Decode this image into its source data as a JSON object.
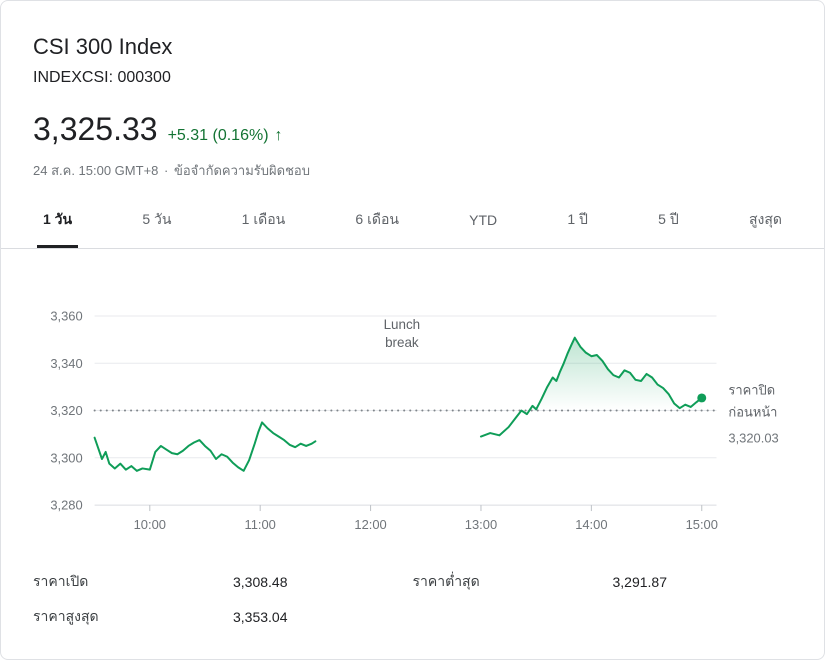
{
  "header": {
    "title": "CSI 300 Index",
    "ticker": "INDEXCSI: 000300",
    "price": "3,325.33",
    "change": "+5.31 (0.16%)",
    "trend_arrow_icon": "↑",
    "timestamp": "24 ส.ค. 15:00 GMT+8",
    "separator": "·",
    "disclaimer": "ข้อจำกัดความรับผิดชอบ"
  },
  "tabs": [
    {
      "label": "1 วัน",
      "active": true
    },
    {
      "label": "5 วัน",
      "active": false
    },
    {
      "label": "1 เดือน",
      "active": false
    },
    {
      "label": "6 เดือน",
      "active": false
    },
    {
      "label": "YTD",
      "active": false
    },
    {
      "label": "1 ปี",
      "active": false
    },
    {
      "label": "5 ปี",
      "active": false
    },
    {
      "label": "สูงสุด",
      "active": false
    }
  ],
  "chart_data": {
    "type": "line",
    "title": "CSI 300 Index intraday",
    "x_domain_minutes": [
      570,
      908
    ],
    "ylim": [
      3280,
      3360
    ],
    "grid": true,
    "y_ticks": [
      {
        "value": 3360,
        "label": "3,360"
      },
      {
        "value": 3340,
        "label": "3,340"
      },
      {
        "value": 3320,
        "label": "3,320"
      },
      {
        "value": 3300,
        "label": "3,300"
      },
      {
        "value": 3280,
        "label": "3,280"
      }
    ],
    "x_ticks": [
      {
        "minutes": 600,
        "label": "10:00"
      },
      {
        "minutes": 660,
        "label": "11:00"
      },
      {
        "minutes": 720,
        "label": "12:00"
      },
      {
        "minutes": 780,
        "label": "13:00"
      },
      {
        "minutes": 840,
        "label": "14:00"
      },
      {
        "minutes": 900,
        "label": "15:00"
      }
    ],
    "annotation": {
      "lines": [
        "Lunch",
        "break"
      ],
      "minutes": 737
    },
    "previous_close": {
      "value": 3320.03,
      "label_lines": [
        "ราคาปิด",
        "ก่อนหน้า"
      ],
      "value_label": "3,320.03"
    },
    "last_point": {
      "minutes": 900,
      "value": 3325.33
    },
    "colors": {
      "line": "#0f9d58",
      "change_text": "#137333",
      "grid": "#e8eaed",
      "axis_line": "#dadce0",
      "tick": "#bdc1c6",
      "axis_text": "#70757a",
      "annotation_text": "#5f6368",
      "prev_close": "#80868b",
      "label_text": "#5f6368"
    },
    "sessions": [
      {
        "name": "morning",
        "points": [
          [
            570,
            3308.5
          ],
          [
            572,
            3304
          ],
          [
            574,
            3299.5
          ],
          [
            576,
            3302.5
          ],
          [
            578,
            3297.5
          ],
          [
            581,
            3295.5
          ],
          [
            584,
            3297.5
          ],
          [
            587,
            3295
          ],
          [
            590,
            3296.5
          ],
          [
            593,
            3294.5
          ],
          [
            596,
            3295.5
          ],
          [
            600,
            3295
          ],
          [
            603,
            3302.5
          ],
          [
            606,
            3305
          ],
          [
            609,
            3303.5
          ],
          [
            612,
            3302
          ],
          [
            615,
            3301.5
          ],
          [
            618,
            3303
          ],
          [
            621,
            3305
          ],
          [
            624,
            3306.5
          ],
          [
            627,
            3307.5
          ],
          [
            630,
            3305
          ],
          [
            633,
            3303
          ],
          [
            636,
            3299.5
          ],
          [
            639,
            3301.5
          ],
          [
            642,
            3300.5
          ],
          [
            645,
            3298
          ],
          [
            648,
            3296
          ],
          [
            651,
            3294.5
          ],
          [
            654,
            3299
          ],
          [
            657,
            3306
          ],
          [
            659,
            3311
          ],
          [
            661,
            3315
          ],
          [
            664,
            3312.5
          ],
          [
            667,
            3310.5
          ],
          [
            670,
            3309
          ],
          [
            673,
            3307.5
          ],
          [
            676,
            3305.5
          ],
          [
            679,
            3304.5
          ],
          [
            682,
            3306
          ],
          [
            685,
            3305
          ],
          [
            688,
            3306
          ],
          [
            690,
            3307
          ]
        ]
      },
      {
        "name": "afternoon",
        "points": [
          [
            780,
            3309
          ],
          [
            785,
            3310.5
          ],
          [
            790,
            3309.5
          ],
          [
            795,
            3313
          ],
          [
            799,
            3317
          ],
          [
            802,
            3320
          ],
          [
            805,
            3318.5
          ],
          [
            808,
            3322
          ],
          [
            810,
            3320.5
          ],
          [
            813,
            3325
          ],
          [
            816,
            3330
          ],
          [
            819,
            3334
          ],
          [
            821,
            3332.5
          ],
          [
            823,
            3336.5
          ],
          [
            825,
            3340
          ],
          [
            827,
            3344
          ],
          [
            829,
            3347.5
          ],
          [
            831,
            3350.8
          ],
          [
            834,
            3347
          ],
          [
            837,
            3344.5
          ],
          [
            840,
            3343
          ],
          [
            843,
            3343.5
          ],
          [
            846,
            3341
          ],
          [
            849,
            3337.5
          ],
          [
            852,
            3335
          ],
          [
            855,
            3334
          ],
          [
            858,
            3337
          ],
          [
            861,
            3336
          ],
          [
            864,
            3333
          ],
          [
            867,
            3332.5
          ],
          [
            870,
            3335.5
          ],
          [
            873,
            3334
          ],
          [
            876,
            3331
          ],
          [
            879,
            3329.5
          ],
          [
            882,
            3327
          ],
          [
            885,
            3323
          ],
          [
            888,
            3321
          ],
          [
            891,
            3322.5
          ],
          [
            894,
            3321.5
          ],
          [
            897,
            3323.5
          ],
          [
            900,
            3325.33
          ]
        ]
      }
    ]
  },
  "stats": [
    {
      "label": "ราคาเปิด",
      "value": "3,308.48"
    },
    {
      "label": "ราคาต่ำสุด",
      "value": "3,291.87"
    },
    {
      "label": "ราคาสูงสุด",
      "value": "3,353.04"
    }
  ]
}
